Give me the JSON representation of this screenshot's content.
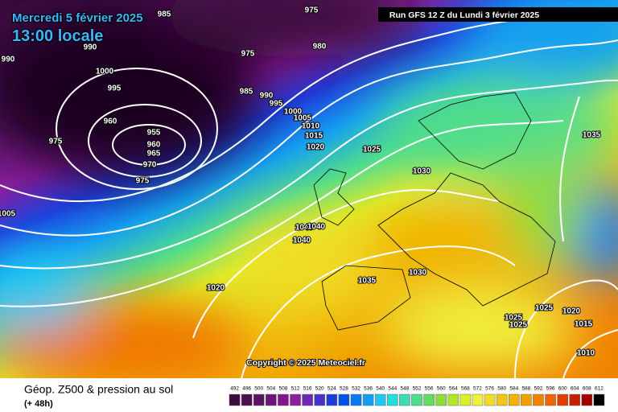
{
  "header": {
    "date": "Mercredi 5 février 2025",
    "time": "13:00 locale",
    "run": "Run GFS 12 Z du Lundi 3 février 2025"
  },
  "map": {
    "isobar_labels": [
      "985",
      "975",
      "990",
      "990",
      "1000",
      "975",
      "980",
      "995",
      "985",
      "990",
      "995",
      "960",
      "955",
      "960",
      "965",
      "970",
      "975",
      "975",
      "1000",
      "1005",
      "1010",
      "1015",
      "1020",
      "1025",
      "1030",
      "1035",
      "1040",
      "1040",
      "1040",
      "1005",
      "1020",
      "1035",
      "1030",
      "1025",
      "1020",
      "1025",
      "1025",
      "1015",
      "1010"
    ],
    "copyright": "Copyright © 2025 Meteociel.fr"
  },
  "footer": {
    "title": "Géop. Z500 & pression au sol",
    "lead": "(+ 48h)",
    "scale": [
      "492",
      "496",
      "500",
      "504",
      "508",
      "512",
      "516",
      "520",
      "524",
      "528",
      "532",
      "536",
      "540",
      "544",
      "548",
      "552",
      "556",
      "560",
      "564",
      "568",
      "572",
      "576",
      "580",
      "584",
      "588",
      "592",
      "596",
      "600",
      "604",
      "608",
      "612"
    ],
    "scale_colors": [
      "#3c0a3c",
      "#4b0f50",
      "#5a1464",
      "#6e1478",
      "#82148c",
      "#8c1ea0",
      "#6e28b4",
      "#4632c8",
      "#1e3cdc",
      "#0050f0",
      "#0a78f0",
      "#14a0f0",
      "#1ec8f0",
      "#28dcdc",
      "#3cdcb4",
      "#50dc8c",
      "#64dc64",
      "#8cdc3c",
      "#b4e628",
      "#dcf028",
      "#f0f03c",
      "#f0dc28",
      "#f0c814",
      "#f0b400",
      "#f0a000",
      "#f08200",
      "#f06400",
      "#e63c00",
      "#c81e00",
      "#a00000",
      "#000000"
    ]
  }
}
